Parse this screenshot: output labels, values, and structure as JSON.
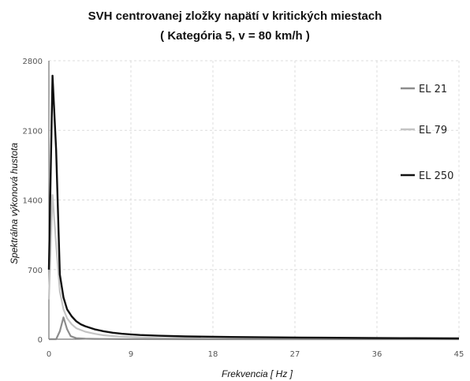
{
  "chart_data": {
    "type": "line",
    "title": "SVH centrovanej zložky napätí v kritických miestach",
    "subtitle": "( Kategória 5, v = 80 km/h )",
    "xlabel": "Frekvencia [ Hz ]",
    "ylabel": "Spektrálna výkonová hustota",
    "xlim": [
      0,
      45
    ],
    "ylim": [
      0,
      2800
    ],
    "xticks": [
      0,
      9,
      18,
      27,
      36,
      45
    ],
    "yticks": [
      0,
      700,
      1400,
      2100,
      2800
    ],
    "grid": true,
    "legend_position": "top-right",
    "series": [
      {
        "name": "EL 21",
        "color": "#8c8c8c",
        "x": [
          0,
          0.4,
          0.8,
          1.2,
          1.6,
          2.0,
          2.4,
          3.0,
          4.0,
          5.0,
          6.0,
          8.0,
          10.0,
          15.0,
          20.0,
          30.0,
          45.0
        ],
        "y": [
          0,
          0,
          0,
          80,
          220,
          100,
          30,
          10,
          5,
          3,
          2,
          1,
          1,
          0,
          0,
          0,
          0
        ]
      },
      {
        "name": "EL 79",
        "color": "#c4c4c4",
        "x": [
          0,
          0.4,
          0.8,
          1.2,
          1.6,
          2.0,
          2.5,
          3.0,
          4.0,
          5.0,
          6.0,
          7.0,
          8.0,
          9.0,
          10.0,
          12.0,
          15.0,
          20.0,
          30.0,
          45.0
        ],
        "y": [
          400,
          1450,
          950,
          480,
          300,
          210,
          150,
          110,
          75,
          55,
          40,
          32,
          26,
          22,
          18,
          12,
          8,
          5,
          3,
          2
        ]
      },
      {
        "name": "EL 250",
        "color": "#111111",
        "x": [
          0,
          0.4,
          0.8,
          1.2,
          1.6,
          2.0,
          2.5,
          3.0,
          3.5,
          4.0,
          5.0,
          6.0,
          7.0,
          8.0,
          9.0,
          10.0,
          12.0,
          15.0,
          20.0,
          25.0,
          30.0,
          35.0,
          40.0,
          45.0
        ],
        "y": [
          700,
          2650,
          1900,
          650,
          420,
          300,
          230,
          180,
          150,
          130,
          100,
          80,
          65,
          55,
          48,
          42,
          35,
          28,
          22,
          18,
          15,
          12,
          10,
          8
        ]
      }
    ]
  }
}
